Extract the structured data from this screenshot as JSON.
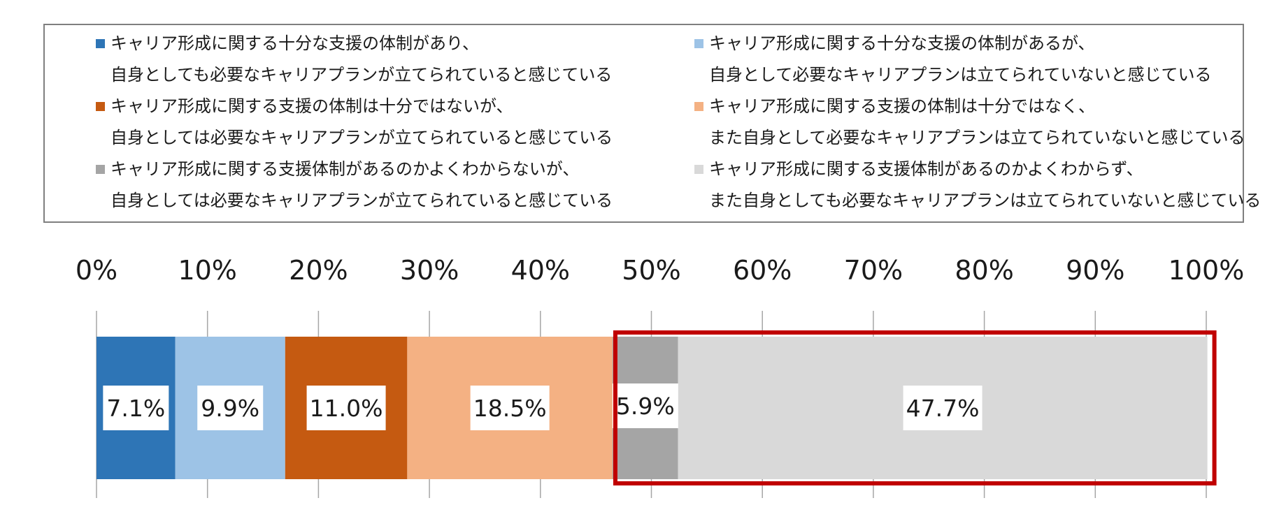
{
  "chart_data": {
    "type": "bar",
    "orientation": "horizontal",
    "stacked": true,
    "xlim": [
      0,
      100
    ],
    "tick_labels": [
      "0%",
      "10%",
      "20%",
      "30%",
      "40%",
      "50%",
      "60%",
      "70%",
      "80%",
      "90%",
      "100%"
    ],
    "grid": true,
    "legend_position": "top",
    "highlight": {
      "series_from": 4,
      "series_to": 5,
      "color": "#c00000"
    },
    "series": [
      {
        "name_line1": "キャリア形成に関する十分な支援の体制があり、",
        "name_line2": "自身としても必要なキャリアプランが立てられていると感じている",
        "value": 7.1,
        "label": "7.1%",
        "color": "#2e75b6"
      },
      {
        "name_line1": "キャリア形成に関する十分な支援の体制があるが、",
        "name_line2": "自身として必要なキャリアプランは立てられていないと感じている",
        "value": 9.9,
        "label": "9.9%",
        "color": "#9dc3e6"
      },
      {
        "name_line1": "キャリア形成に関する支援の体制は十分ではないが、",
        "name_line2": "自身としては必要なキャリアプランが立てられていると感じている",
        "value": 11.0,
        "label": "11.0%",
        "color": "#c55a11"
      },
      {
        "name_line1": "キャリア形成に関する支援の体制は十分ではなく、",
        "name_line2": "また自身として必要なキャリアプランは立てられていないと感じている",
        "value": 18.5,
        "label": "18.5%",
        "color": "#f4b183"
      },
      {
        "name_line1": "キャリア形成に関する支援体制があるのかよくわからないが、",
        "name_line2": "自身としては必要なキャリアプランが立てられていると感じている",
        "value": 5.9,
        "label": "5.9%",
        "color": "#a5a5a5"
      },
      {
        "name_line1": "キャリア形成に関する支援体制があるのかよくわからず、",
        "name_line2": "また自身としても必要なキャリアプランは立てられていないと感じている",
        "value": 47.7,
        "label": "47.7%",
        "color": "#d9d9d9"
      }
    ]
  }
}
